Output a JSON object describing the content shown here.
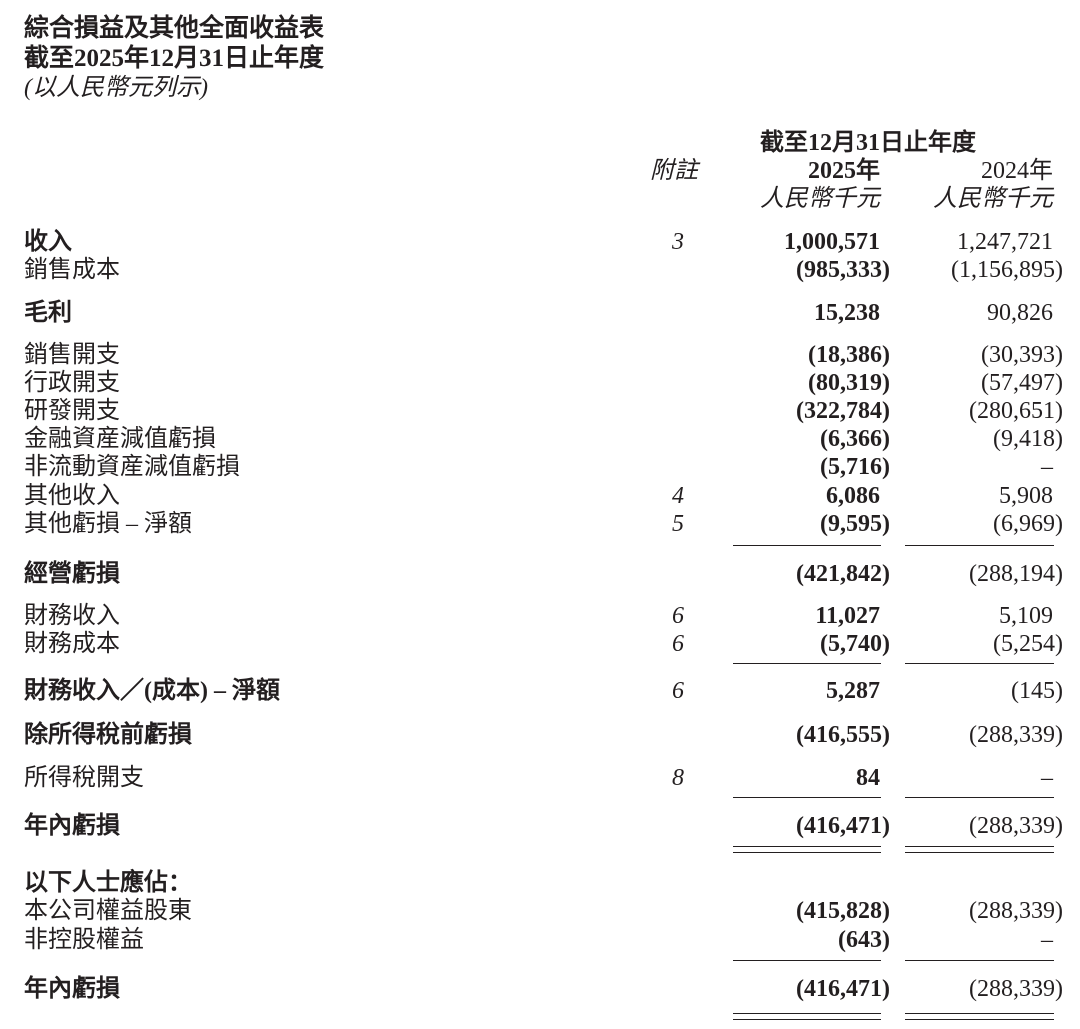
{
  "header": {
    "title": "綜合損益及其他全面收益表",
    "period": "截至2025年12月31日止年度",
    "currency_note": "(以人民幣元列示)"
  },
  "columns": {
    "period_header": "截至12月31日止年度",
    "note_header": "附註",
    "year_current": "2025年",
    "year_prior": "2024年",
    "unit_current": "人民幣千元",
    "unit_prior": "人民幣千元"
  },
  "rows": [
    {
      "label": "收入",
      "bold": true,
      "note": "3",
      "current": "1,000,571",
      "prior": "1,247,721"
    },
    {
      "label": "銷售成本",
      "bold": false,
      "note": "",
      "current": "(985,333)",
      "prior": "(1,156,895)"
    },
    {
      "label": "毛利",
      "bold": true,
      "note": "",
      "current": "15,238",
      "prior": "90,826"
    },
    {
      "label": "銷售開支",
      "bold": false,
      "note": "",
      "current": "(18,386)",
      "prior": "(30,393)"
    },
    {
      "label": "行政開支",
      "bold": false,
      "note": "",
      "current": "(80,319)",
      "prior": "(57,497)"
    },
    {
      "label": "研發開支",
      "bold": false,
      "note": "",
      "current": "(322,784)",
      "prior": "(280,651)"
    },
    {
      "label": "金融資産減值虧損",
      "bold": false,
      "note": "",
      "current": "(6,366)",
      "prior": "(9,418)"
    },
    {
      "label": "非流動資産減值虧損",
      "bold": false,
      "note": "",
      "current": "(5,716)",
      "prior": "–"
    },
    {
      "label": "其他收入",
      "bold": false,
      "note": "4",
      "current": "6,086",
      "prior": "5,908"
    },
    {
      "label": "其他虧損 – 淨額",
      "bold": false,
      "note": "5",
      "current": "(9,595)",
      "prior": "(6,969)"
    },
    {
      "label": "經營虧損",
      "bold": true,
      "note": "",
      "current": "(421,842)",
      "prior": "(288,194)"
    },
    {
      "label": "財務收入",
      "bold": false,
      "note": "6",
      "current": "11,027",
      "prior": "5,109"
    },
    {
      "label": "財務成本",
      "bold": false,
      "note": "6",
      "current": "(5,740)",
      "prior": "(5,254)"
    },
    {
      "label": "財務收入／(成本) – 淨額",
      "bold": true,
      "note": "6",
      "current": "5,287",
      "prior": "(145)"
    },
    {
      "label": "除所得稅前虧損",
      "bold": true,
      "note": "",
      "current": "(416,555)",
      "prior": "(288,339)"
    },
    {
      "label": "所得稅開支",
      "bold": false,
      "note": "8",
      "current": "84",
      "prior": "–"
    },
    {
      "label": "年內虧損",
      "bold": true,
      "note": "",
      "current": "(416,471)",
      "prior": "(288,339)"
    },
    {
      "label": "以下人士應佔：",
      "bold": true,
      "note": "",
      "current": "",
      "prior": ""
    },
    {
      "label": "本公司權益股東",
      "bold": false,
      "note": "",
      "current": "(415,828)",
      "prior": "(288,339)"
    },
    {
      "label": "非控股權益",
      "bold": false,
      "note": "",
      "current": "(643)",
      "prior": "–"
    },
    {
      "label": "年內虧損",
      "bold": true,
      "note": "",
      "current": "(416,471)",
      "prior": "(288,339)"
    }
  ]
}
